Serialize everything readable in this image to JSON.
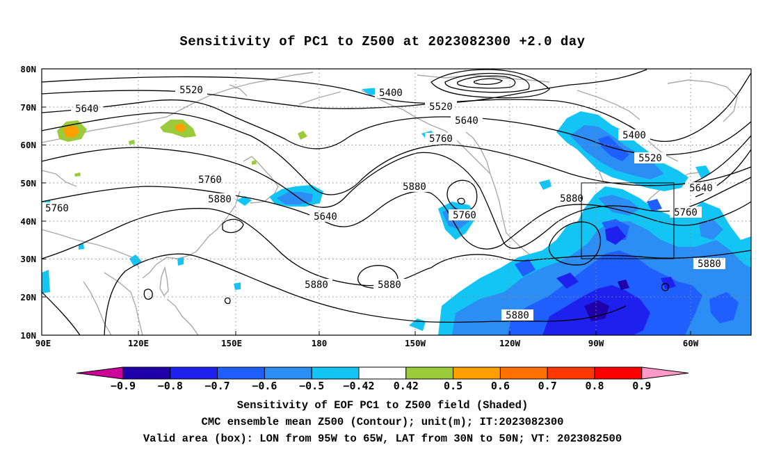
{
  "title": "Sensitivity of PC1 to Z500 at 2023082300 +2.0 day",
  "map": {
    "lat_labels": [
      "80N",
      "70N",
      "60N",
      "50N",
      "40N",
      "30N",
      "20N",
      "10N"
    ],
    "lon_labels": [
      "90E",
      "120E",
      "150E",
      "180",
      "150W",
      "120W",
      "90W",
      "60W"
    ],
    "extent": {
      "lon_min": 90,
      "lon_max": 310,
      "lat_min": 10,
      "lat_max": 80
    },
    "valid_box": {
      "lon_west": "95W",
      "lon_east": "65W",
      "lat_south": "30N",
      "lat_north": "50N"
    },
    "contour_labels": [
      "5520",
      "5640",
      "5400",
      "5520",
      "5640",
      "5760",
      "5760",
      "5880",
      "5880",
      "5760",
      "5760",
      "5640",
      "5400",
      "5520",
      "5640",
      "5880",
      "5760",
      "5880",
      "5880",
      "5880",
      "5880"
    ]
  },
  "colorbar": {
    "labels": [
      "−0.9",
      "−0.8",
      "−0.7",
      "−0.6",
      "−0.5",
      "−0.42",
      "0.42",
      "0.5",
      "0.6",
      "0.7",
      "0.8",
      "0.9"
    ],
    "colors": [
      "#cc0099",
      "#1f00a8",
      "#1e21ee",
      "#1f5fff",
      "#2c8df4",
      "#12c5f5",
      "#ffffff",
      "#9bcb3a",
      "#ffa000",
      "#ff7000",
      "#ff3800",
      "#ff0000",
      "#ff9ac8"
    ]
  },
  "captions": {
    "line1": "Sensitivity of EOF PC1 to Z500 field (Shaded)",
    "line2": "CMC ensemble mean Z500 (Contour); unit(m); IT:2023082300",
    "line3": "Valid area (box): LON from 95W to 65W, LAT from 30N to 50N; VT: 2023082500"
  }
}
